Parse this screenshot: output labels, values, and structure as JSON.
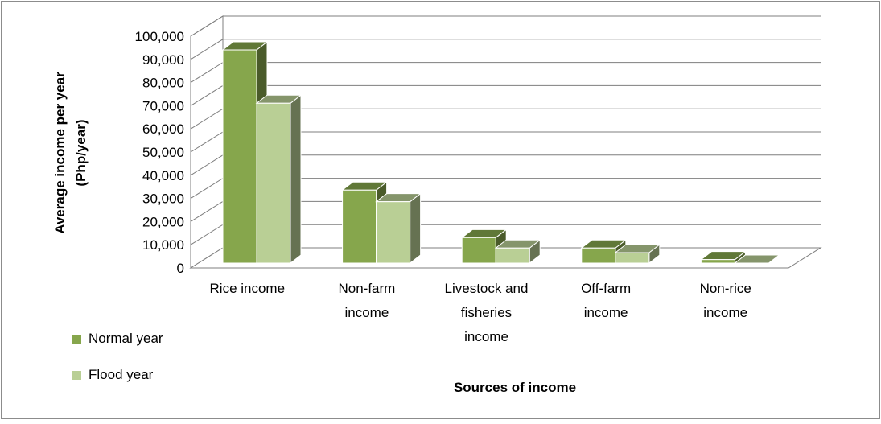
{
  "chart_data": {
    "type": "bar",
    "style": "3d-clustered-column",
    "categories": [
      [
        "Rice income"
      ],
      [
        "Non-farm",
        "income"
      ],
      [
        "Livestock and",
        "fisheries",
        "income"
      ],
      [
        "Off-farm",
        "income"
      ],
      [
        "Non-rice",
        "income"
      ]
    ],
    "series": [
      {
        "name": "Normal year",
        "values": [
          92000,
          31500,
          11000,
          6500,
          1500
        ],
        "color": "#86a64c"
      },
      {
        "name": "Flood year",
        "values": [
          69000,
          26500,
          6500,
          4500,
          0
        ],
        "color": "#b9cf95"
      }
    ],
    "xlabel": "Sources of income",
    "ylabel": [
      "Average income per year",
      "(Php/year)"
    ],
    "ylim": [
      0,
      100000
    ],
    "yticks": [
      "0",
      "10,000",
      "20,000",
      "30,000",
      "40,000",
      "50,000",
      "60,000",
      "70,000",
      "80,000",
      "90,000",
      "100,000"
    ],
    "grid": true,
    "legend_position": "bottom-left"
  }
}
